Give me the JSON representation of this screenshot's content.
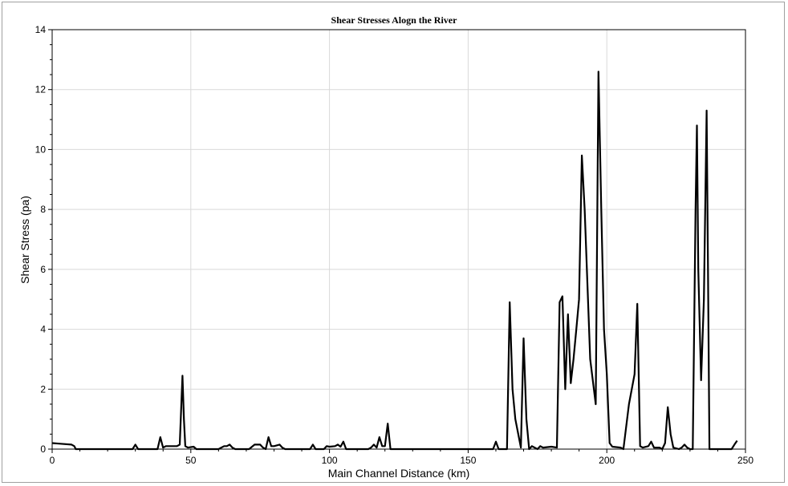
{
  "chart_data": {
    "type": "line",
    "title": "Shear Stresses Alogn the River",
    "xlabel": "Main Channel Distance (km)",
    "ylabel": "Shear Stress (pa)",
    "xlim": [
      0,
      250
    ],
    "ylim": [
      0,
      14
    ],
    "xticks": [
      0,
      50,
      100,
      150,
      200,
      250
    ],
    "yticks": [
      0,
      2,
      4,
      6,
      8,
      10,
      12,
      14
    ],
    "grid": true,
    "line_color": "#000000",
    "grid_color": "#d9d9d9",
    "series": [
      {
        "x": [
          0,
          3,
          7,
          8,
          8.5,
          29,
          30,
          31,
          38,
          39,
          40,
          41,
          45,
          46,
          47,
          47.5,
          48,
          49,
          51,
          52,
          60,
          61,
          62,
          63,
          64,
          65,
          66,
          71,
          73,
          75,
          76,
          77,
          78,
          79,
          80,
          82,
          83,
          84,
          93,
          94,
          95,
          98,
          99,
          100,
          102,
          103,
          104,
          105,
          106,
          114,
          115,
          116,
          117,
          118,
          119,
          120,
          121,
          122,
          159,
          160,
          161,
          164,
          165,
          166,
          167,
          169,
          170,
          171,
          172,
          173,
          175,
          176,
          177,
          180,
          182,
          183,
          184,
          185,
          186,
          187,
          188,
          189,
          190,
          191,
          192,
          194,
          196,
          197,
          198,
          199,
          200,
          201,
          202,
          205,
          206,
          208,
          210,
          211,
          212,
          213,
          215,
          216,
          217,
          219,
          220,
          221,
          222,
          223,
          224,
          226,
          227,
          228,
          229,
          230,
          231,
          232,
          232.5,
          233,
          234,
          235,
          236,
          236.5,
          237,
          238,
          245,
          246,
          247
        ],
        "y": [
          0.2,
          0.18,
          0.15,
          0.1,
          0.0,
          0.0,
          0.15,
          0.0,
          0.0,
          0.4,
          0.05,
          0.1,
          0.1,
          0.15,
          2.45,
          1.0,
          0.1,
          0.05,
          0.08,
          0.0,
          0.0,
          0.05,
          0.1,
          0.1,
          0.15,
          0.05,
          0.0,
          0.0,
          0.15,
          0.15,
          0.05,
          0.0,
          0.4,
          0.1,
          0.1,
          0.15,
          0.05,
          0.0,
          0.0,
          0.15,
          0.0,
          0.0,
          0.1,
          0.08,
          0.1,
          0.15,
          0.08,
          0.25,
          0.0,
          0.0,
          0.05,
          0.15,
          0.05,
          0.4,
          0.1,
          0.1,
          0.85,
          0.0,
          0.0,
          0.25,
          0.0,
          0.0,
          4.9,
          2.0,
          1.0,
          0.05,
          3.7,
          1.0,
          0.0,
          0.1,
          0.0,
          0.1,
          0.05,
          0.08,
          0.05,
          4.9,
          5.1,
          2.0,
          4.5,
          2.2,
          3.0,
          4.0,
          5.0,
          9.8,
          8.0,
          3.0,
          1.5,
          12.6,
          8.0,
          4.0,
          2.5,
          0.2,
          0.08,
          0.05,
          0.0,
          1.5,
          2.5,
          4.85,
          0.1,
          0.05,
          0.1,
          0.25,
          0.05,
          0.05,
          0.0,
          0.2,
          1.4,
          0.5,
          0.05,
          0.0,
          0.05,
          0.15,
          0.05,
          0.0,
          0.0,
          8.0,
          10.8,
          6.0,
          2.3,
          5.0,
          11.3,
          6.0,
          0.0,
          0.0,
          0.0,
          0.15,
          0.28
        ]
      }
    ]
  }
}
